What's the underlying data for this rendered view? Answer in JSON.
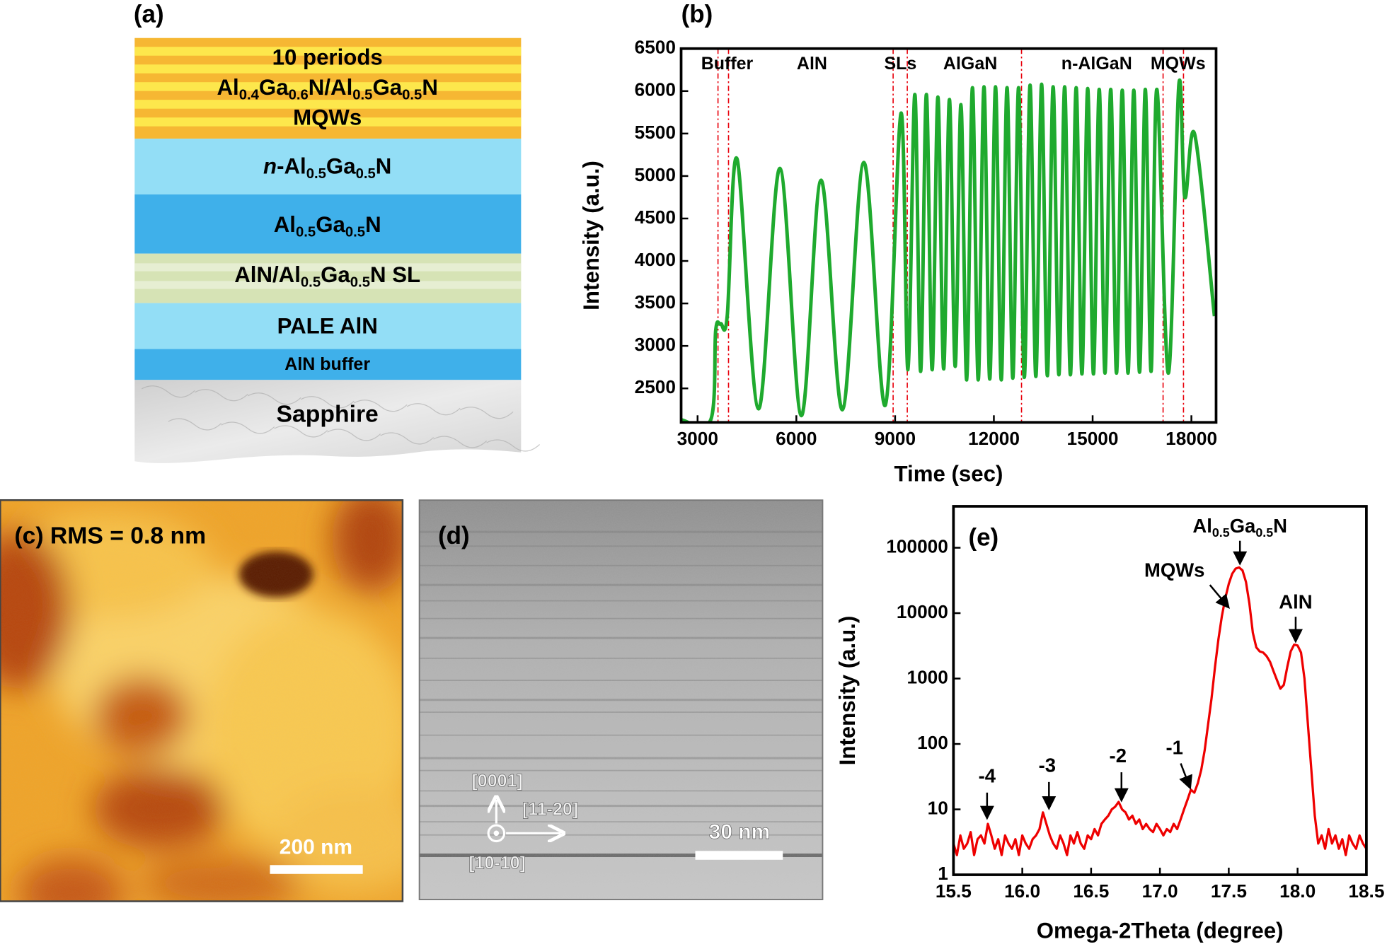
{
  "layer_stack": {
    "label": "(a)",
    "layers": [
      {
        "color": "#f6b733",
        "lines": [
          [
            {
              "text": "10 periods"
            }
          ],
          [
            {
              "text": "Al"
            },
            {
              "sub": "0.4"
            },
            {
              "text": "Ga"
            },
            {
              "sub": "0.6"
            },
            {
              "text": "N/Al"
            },
            {
              "sub": "0.5"
            },
            {
              "text": "Ga"
            },
            {
              "sub": "0.5"
            },
            {
              "text": "N"
            }
          ],
          [
            {
              "text": "MQWs"
            }
          ]
        ]
      },
      {
        "color": "#93def6",
        "lines": [
          [
            {
              "italic": "n"
            },
            {
              "text": "-Al"
            },
            {
              "sub": "0.5"
            },
            {
              "text": "Ga"
            },
            {
              "sub": "0.5"
            },
            {
              "text": "N"
            }
          ]
        ]
      },
      {
        "color": "#3fb0ea",
        "lines": [
          [
            {
              "text": "Al"
            },
            {
              "sub": "0.5"
            },
            {
              "text": "Ga"
            },
            {
              "sub": "0.5"
            },
            {
              "text": "N"
            }
          ]
        ]
      },
      {
        "color": "#d6e3b5",
        "lines": [
          [
            {
              "text": "AlN/Al"
            },
            {
              "sub": "0.5"
            },
            {
              "text": "Ga"
            },
            {
              "sub": "0.5"
            },
            {
              "text": "N SL"
            }
          ]
        ]
      },
      {
        "color": "#93def6",
        "lines": [
          [
            {
              "text": "PALE AlN"
            }
          ]
        ]
      },
      {
        "color": "#3fb0ea",
        "lines": [
          [
            {
              "text": "AlN buffer"
            }
          ]
        ]
      },
      {
        "color": "#d9d9d9",
        "lines": [
          [
            {
              "text": "Sapphire"
            }
          ]
        ]
      }
    ]
  },
  "chart_data": [
    {
      "type": "line",
      "panel_label": "(b)",
      "xlabel": "Time (sec)",
      "ylabel": "Intensity (a.u.)",
      "xlim": [
        2500,
        18750
      ],
      "ylim": [
        2100,
        6500
      ],
      "xticks": [
        3000,
        6000,
        9000,
        12000,
        15000,
        18000
      ],
      "yticks": [
        2500,
        3000,
        3500,
        4000,
        4500,
        5000,
        5500,
        6000,
        6500
      ],
      "x": [
        2500,
        3400,
        3550,
        3700,
        3900,
        4200,
        4850,
        5500,
        6150,
        6750,
        7400,
        8050,
        8700,
        9180,
        9390,
        9600,
        9775,
        9950,
        10125,
        10300,
        10475,
        10650,
        10825,
        11000,
        11175,
        11350,
        11525,
        11700,
        11875,
        12050,
        12225,
        12400,
        12575,
        12750,
        12925,
        13100,
        13275,
        13450,
        13625,
        13800,
        13975,
        14150,
        14325,
        14500,
        14675,
        14850,
        15025,
        15200,
        15375,
        15550,
        15725,
        15900,
        16075,
        16250,
        16425,
        16600,
        16775,
        16950,
        17300,
        17620,
        17800,
        18100,
        18700
      ],
      "series": [
        {
          "color": "#1faa2e",
          "values": [
            2130,
            2130,
            3180,
            3260,
            3350,
            5200,
            2260,
            5090,
            2180,
            4950,
            2250,
            5160,
            2300,
            5740,
            2720,
            5960,
            2700,
            5960,
            2720,
            5930,
            2730,
            5900,
            2760,
            5840,
            2600,
            6040,
            2600,
            6050,
            2610,
            6050,
            2600,
            6040,
            2620,
            6040,
            2630,
            6070,
            2640,
            6080,
            2650,
            6050,
            2660,
            6050,
            2660,
            6040,
            2670,
            6030,
            2670,
            6020,
            2680,
            6020,
            2680,
            6010,
            2680,
            6010,
            2690,
            6020,
            2700,
            6020,
            2680,
            6080,
            4750,
            5490,
            3350
          ]
        }
      ],
      "boundaries": [
        3620,
        3940,
        8940,
        9370,
        12840,
        17140,
        17760
      ],
      "boundary_color": "#e8000b",
      "regions": [
        "Buffer",
        "AlN",
        "SLs",
        "AlGaN",
        "n-AlGaN",
        "MQWs"
      ]
    },
    {
      "type": "line",
      "panel_label": "(e)",
      "xlabel": "Omega-2Theta (degree)",
      "ylabel": "Intensity (a.u.)",
      "log_y": true,
      "xlim": [
        15.5,
        18.5
      ],
      "ylim": [
        1,
        430000
      ],
      "xticks": [
        15.5,
        {
          "value": 16,
          "label": "16.0"
        },
        16.5,
        {
          "value": 17,
          "label": "17.0"
        },
        17.5,
        {
          "value": 18,
          "label": "18.0"
        },
        18.5
      ],
      "yticks": [
        1,
        10,
        100,
        1000,
        10000,
        100000
      ],
      "x": [
        15.5,
        15.525,
        15.55,
        15.575,
        15.6,
        15.625,
        15.65,
        15.675,
        15.7,
        15.725,
        15.75,
        15.775,
        15.8,
        15.825,
        15.85,
        15.875,
        15.9,
        15.925,
        15.95,
        15.975,
        16,
        16.025,
        16.05,
        16.075,
        16.1,
        16.125,
        16.15,
        16.175,
        16.2,
        16.225,
        16.25,
        16.275,
        16.3,
        16.325,
        16.35,
        16.375,
        16.4,
        16.425,
        16.45,
        16.475,
        16.5,
        16.525,
        16.55,
        16.575,
        16.6,
        16.625,
        16.65,
        16.675,
        16.7,
        16.725,
        16.75,
        16.775,
        16.8,
        16.825,
        16.85,
        16.875,
        16.9,
        16.925,
        16.95,
        16.975,
        17,
        17.025,
        17.05,
        17.075,
        17.1,
        17.125,
        17.15,
        17.175,
        17.2,
        17.225,
        17.25,
        17.275,
        17.3,
        17.325,
        17.35,
        17.375,
        17.4,
        17.425,
        17.45,
        17.475,
        17.5,
        17.525,
        17.55,
        17.575,
        17.6,
        17.625,
        17.65,
        17.675,
        17.7,
        17.725,
        17.75,
        17.775,
        17.8,
        17.825,
        17.85,
        17.875,
        17.9,
        17.925,
        17.95,
        17.975,
        18,
        18.025,
        18.05,
        18.075,
        18.1,
        18.125,
        18.15,
        18.175,
        18.2,
        18.225,
        18.25,
        18.275,
        18.3,
        18.325,
        18.35,
        18.375,
        18.4,
        18.425,
        18.45,
        18.475,
        18.5
      ],
      "series": [
        {
          "color": "#ee0000",
          "values": [
            3,
            2,
            4,
            2.5,
            3,
            4.5,
            2,
            3.5,
            4,
            3,
            6,
            4,
            2.5,
            3.5,
            2,
            4,
            3,
            2.5,
            3.5,
            2,
            4,
            3,
            2.5,
            3.5,
            4,
            5,
            9,
            6,
            4,
            3,
            2.5,
            4,
            3,
            2,
            4,
            3,
            4.5,
            3,
            2.5,
            4,
            3.5,
            5,
            4,
            6,
            7,
            8,
            10,
            11,
            13,
            10,
            9,
            7,
            8,
            6,
            7,
            5,
            6,
            5,
            4.5,
            6,
            5,
            4,
            5,
            4.5,
            6,
            5,
            7,
            10,
            14,
            20,
            18,
            25,
            40,
            80,
            200,
            500,
            1500,
            4000,
            9000,
            17000,
            28000,
            40000,
            48000,
            50000,
            45000,
            30000,
            14000,
            5000,
            3000,
            2600,
            2500,
            2200,
            1800,
            1300,
            950,
            700,
            800,
            1500,
            2600,
            3300,
            3200,
            2500,
            1000,
            200,
            40,
            8,
            3,
            4,
            2.5,
            5,
            3,
            4,
            2.5,
            3.5,
            2,
            4,
            3,
            2.5,
            4,
            3,
            2.5
          ]
        }
      ],
      "annotations": [
        [
          {
            "text": "-4"
          }
        ],
        [
          {
            "text": "-3"
          }
        ],
        [
          {
            "text": "-2"
          }
        ],
        [
          {
            "text": "-1"
          }
        ],
        [
          {
            "text": "MQWs"
          }
        ],
        [
          {
            "text": "Al"
          },
          {
            "sub": "0.5"
          },
          {
            "text": "Ga"
          },
          {
            "sub": "0.5"
          },
          {
            "text": "N"
          }
        ],
        [
          {
            "text": "AlN"
          }
        ]
      ]
    }
  ],
  "afm": {
    "label": "(c) RMS = 0.8 nm",
    "scale_bar": "200 nm"
  },
  "tem": {
    "label": "(d)",
    "scale_bar": "30 nm",
    "directions": [
      "[0001]",
      "[11-20]",
      "[10-10]"
    ]
  }
}
